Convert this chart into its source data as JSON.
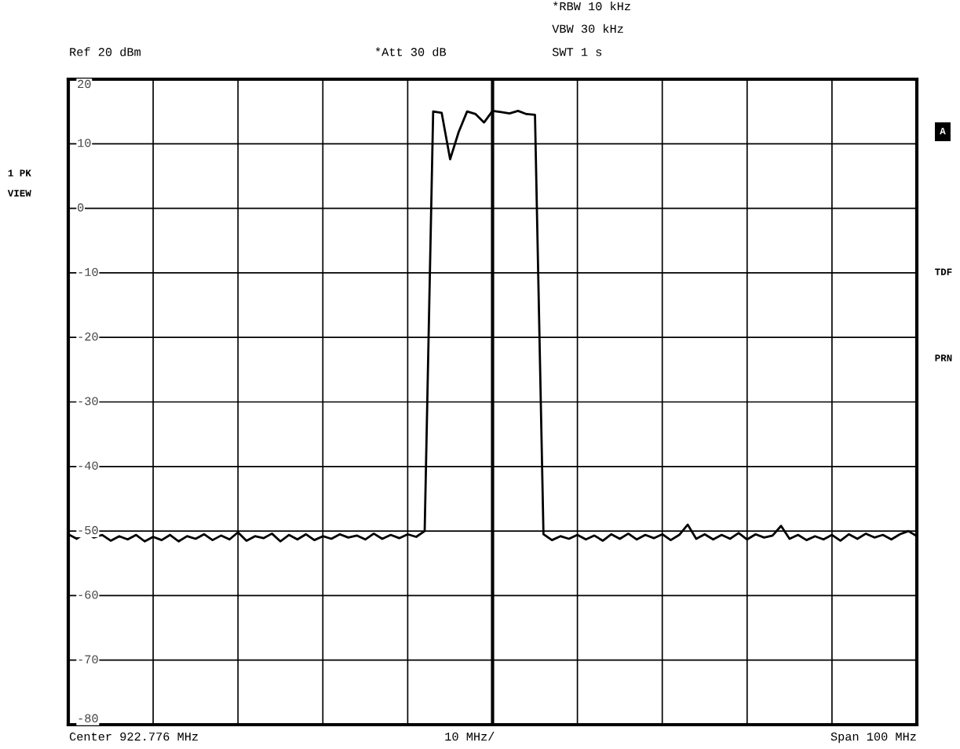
{
  "chart_data": {
    "type": "line",
    "categories": [
      null,
      null,
      null,
      null,
      null,
      null,
      null,
      null,
      null,
      null,
      null,
      null,
      null,
      null,
      null,
      null,
      null,
      null,
      null,
      null,
      null,
      null,
      null,
      null,
      null,
      null,
      null,
      null,
      null,
      null,
      null,
      null,
      null,
      null,
      null,
      null,
      null,
      null,
      null,
      null,
      null,
      null,
      null,
      null,
      null,
      null,
      null,
      null,
      null,
      null,
      null,
      null,
      null,
      null,
      null,
      null,
      null,
      null,
      null,
      null,
      null,
      null,
      null,
      null,
      null,
      null,
      null,
      null,
      null,
      null,
      null,
      null,
      null,
      null,
      null,
      null,
      null,
      null,
      null,
      null,
      null,
      null,
      null,
      null,
      null,
      null,
      null,
      null,
      null,
      null,
      null,
      null,
      null,
      null,
      null,
      null,
      null,
      null,
      null,
      null,
      null
    ],
    "series": [
      {
        "color": "#000000",
        "values": [
          -50.5,
          -51.2,
          -50.3,
          -51.0,
          -50.6,
          -51.5,
          -50.8,
          -51.3,
          -50.6,
          -51.6,
          -50.9,
          -51.4,
          -50.6,
          -51.6,
          -50.8,
          -51.2,
          -50.5,
          -51.4,
          -50.7,
          -51.3,
          -50.2,
          -51.5,
          -50.8,
          -51.1,
          -50.4,
          -51.6,
          -50.6,
          -51.3,
          -50.5,
          -51.4,
          -50.8,
          -51.2,
          -50.5,
          -51.0,
          -50.7,
          -51.3,
          -50.4,
          -51.2,
          -50.6,
          -51.1,
          -50.5,
          -50.9,
          -50.0,
          15.0,
          14.8,
          7.6,
          11.8,
          15.0,
          14.6,
          13.3,
          15.1,
          14.9,
          14.7,
          15.1,
          14.6,
          14.5,
          -50.5,
          -51.4,
          -50.8,
          -51.2,
          -50.6,
          -51.3,
          -50.7,
          -51.5,
          -50.5,
          -51.2,
          -50.4,
          -51.3,
          -50.6,
          -51.1,
          -50.5,
          -51.4,
          -50.6,
          -49.0,
          -51.2,
          -50.5,
          -51.3,
          -50.6,
          -51.2,
          -50.3,
          -51.3,
          -50.5,
          -51.0,
          -50.7,
          -49.2,
          -51.2,
          -50.6,
          -51.4,
          -50.8,
          -51.3,
          -50.6,
          -51.5,
          -50.5,
          -51.2,
          -50.4,
          -51.0,
          -50.6,
          -51.3,
          -50.5,
          -50.0,
          -50.8
        ]
      }
    ],
    "ylim": [
      -80,
      20
    ],
    "yticks": [
      20,
      10,
      0,
      -10,
      -20,
      -30,
      -40,
      -50,
      -60,
      -70,
      -80
    ],
    "grid": true,
    "annotations": [
      "*RBW 10 kHz",
      "VBW 30 kHz",
      "Ref 20 dBm",
      "*Att 30 dB",
      "SWT 1 s",
      "1 PK",
      "VIEW",
      "A",
      "TDF",
      "PRN",
      "Center 922.776 MHz",
      "10 MHz/",
      "Span 100 MHz"
    ]
  }
}
